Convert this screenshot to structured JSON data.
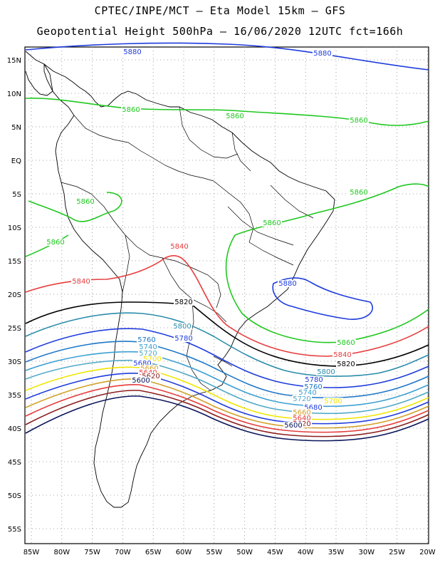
{
  "header": {
    "line1": "CPTEC/INPE/MCT –  Eta Model 15km – GFS",
    "line2": "Geopotential Height 500hPa – 16/06/2020 12UTC fct=166h"
  },
  "axes": {
    "lat_labels": [
      "15N",
      "10N",
      "5N",
      "EQ",
      "5S",
      "10S",
      "15S",
      "20S",
      "25S",
      "30S",
      "35S",
      "40S",
      "45S",
      "50S",
      "55S"
    ],
    "lon_labels": [
      "85W",
      "80W",
      "75W",
      "70W",
      "65W",
      "60W",
      "55W",
      "50W",
      "45W",
      "40W",
      "35W",
      "30W",
      "25W",
      "20W"
    ]
  },
  "contours": [
    {
      "value": 5880,
      "label": "5880",
      "color": "#1e3cdc"
    },
    {
      "value": 5860,
      "label": "5860",
      "color": "#1ec81e"
    },
    {
      "value": 5840,
      "label": "5840",
      "color": "#e63c3c"
    },
    {
      "value": 5820,
      "label": "5820",
      "color": "#000000"
    },
    {
      "value": 5800,
      "label": "5800",
      "color": "#2a8caa"
    },
    {
      "value": 5780,
      "label": "5780",
      "color": "#1e3cdc"
    },
    {
      "value": 5760,
      "label": "5760",
      "color": "#1e78c8"
    },
    {
      "value": 5740,
      "label": "5740",
      "color": "#3ca0d2"
    },
    {
      "value": 5720,
      "label": "5720",
      "color": "#50aac8"
    },
    {
      "value": 5700,
      "label": "5700",
      "color": "#f0e600"
    },
    {
      "value": 5680,
      "label": "5680",
      "color": "#1e3cdc"
    },
    {
      "value": 5660,
      "label": "5660",
      "color": "#d2a028"
    },
    {
      "value": 5640,
      "label": "5640",
      "color": "#e63c3c"
    },
    {
      "value": 5620,
      "label": "5620",
      "color": "#8c1e1e"
    },
    {
      "value": 5600,
      "label": "5600",
      "color": "#0a145a"
    }
  ],
  "colors": {
    "frame": "#000000",
    "grid": "#888888",
    "land_border": "#000000"
  }
}
